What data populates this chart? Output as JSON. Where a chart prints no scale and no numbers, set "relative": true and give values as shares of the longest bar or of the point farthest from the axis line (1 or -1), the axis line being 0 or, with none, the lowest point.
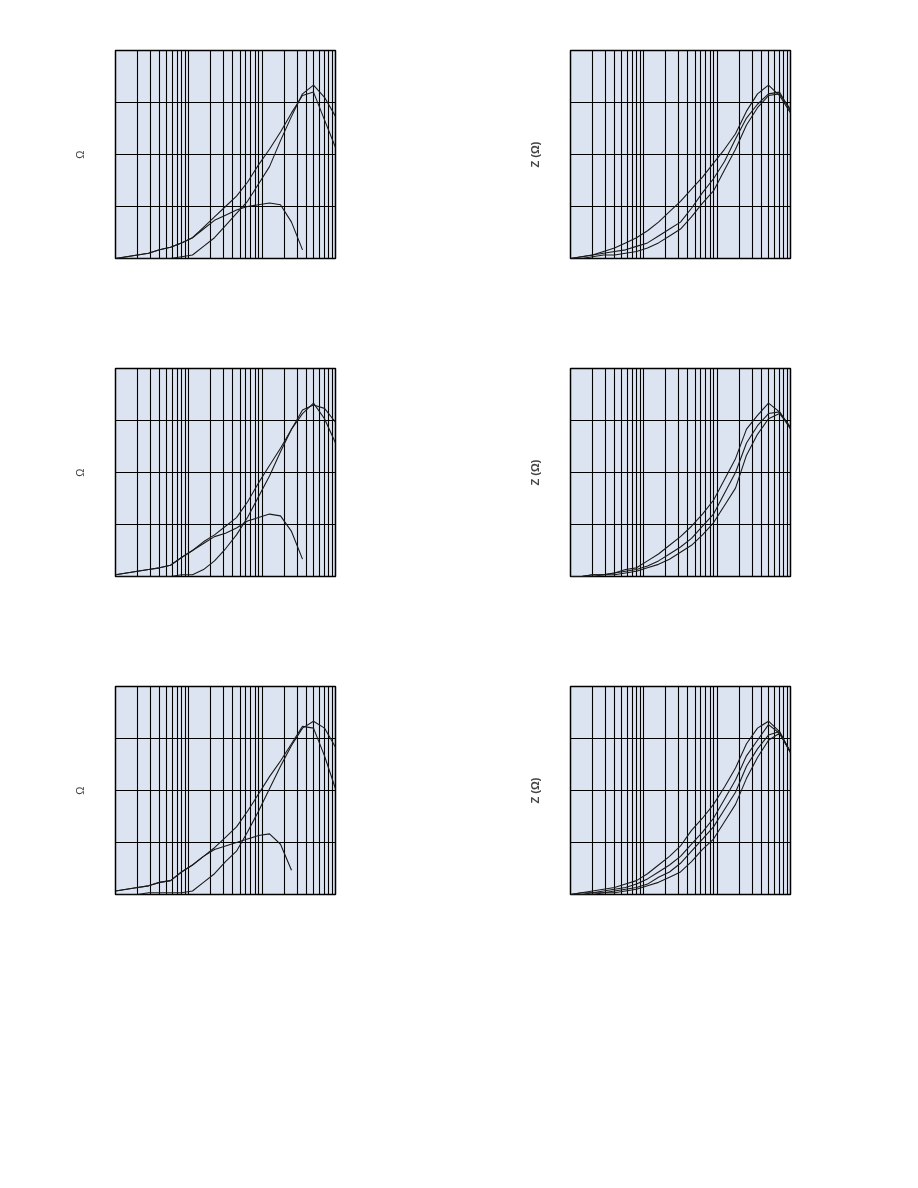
{
  "chart_data": [
    {
      "type": "line",
      "relative": true,
      "ylabel": "Ω",
      "grid": true,
      "categories": [
        null,
        null,
        null,
        null,
        null,
        null,
        null,
        null,
        null,
        null,
        null,
        null,
        null,
        null,
        null,
        null,
        null,
        null,
        null,
        null,
        null
      ],
      "series": [
        {
          "color": "#1a1a1a",
          "values": [
            0,
            0.01,
            0.02,
            0.03,
            0.05,
            0.065,
            0.09,
            0.12,
            0.18,
            0.24,
            0.3,
            0.36,
            0.44,
            0.54,
            0.63,
            0.73,
            0.84,
            0.94,
            0.96,
            0.8,
            0.64
          ]
        },
        {
          "color": "#1a1a1a",
          "values": [
            0,
            0,
            0,
            0,
            0,
            0,
            0.01,
            0.02,
            0.07,
            0.12,
            0.19,
            0.26,
            0.33,
            0.43,
            0.53,
            0.68,
            0.82,
            0.95,
            1.0,
            0.93,
            0.82
          ]
        },
        {
          "color": "#1a1a1a",
          "values": [
            0,
            0.01,
            0.02,
            0.03,
            0.05,
            0.065,
            0.09,
            0.12,
            0.17,
            0.22,
            0.25,
            0.28,
            0.3,
            0.31,
            0.32,
            0.31,
            0.21,
            0.05,
            null,
            null,
            null
          ]
        }
      ]
    },
    {
      "type": "line",
      "relative": true,
      "ylabel": "Z (Ω)",
      "grid": true,
      "categories": [
        null,
        null,
        null,
        null,
        null,
        null,
        null,
        null,
        null,
        null,
        null,
        null,
        null,
        null,
        null,
        null,
        null,
        null,
        null,
        null,
        null
      ],
      "series": [
        {
          "color": "#1a1a1a",
          "values": [
            0,
            0.01,
            0.02,
            0.04,
            0.06,
            0.09,
            0.12,
            0.16,
            0.21,
            0.27,
            0.33,
            0.4,
            0.47,
            0.55,
            0.63,
            0.72,
            0.85,
            0.95,
            1.0,
            0.94,
            0.84
          ]
        },
        {
          "color": "#1a1a1a",
          "values": [
            0,
            0.01,
            0.02,
            0.03,
            0.04,
            0.05,
            0.07,
            0.09,
            0.13,
            0.17,
            0.21,
            0.29,
            0.38,
            0.46,
            0.56,
            0.69,
            0.81,
            0.89,
            0.95,
            0.96,
            0.85
          ]
        },
        {
          "color": "#1a1a1a",
          "values": [
            0,
            0,
            0.01,
            0.02,
            0.02,
            0.03,
            0.04,
            0.06,
            0.09,
            0.13,
            0.17,
            0.24,
            0.32,
            0.39,
            0.51,
            0.63,
            0.77,
            0.87,
            0.94,
            0.95,
            0.86
          ]
        }
      ]
    },
    {
      "type": "line",
      "relative": true,
      "ylabel": "Ω",
      "grid": true,
      "categories": [
        null,
        null,
        null,
        null,
        null,
        null,
        null,
        null,
        null,
        null,
        null,
        null,
        null,
        null,
        null,
        null,
        null,
        null,
        null,
        null,
        null
      ],
      "series": [
        {
          "color": "#1a1a1a",
          "values": [
            0.01,
            0.02,
            0.03,
            0.04,
            0.05,
            0.065,
            0.11,
            0.15,
            0.2,
            0.24,
            0.29,
            0.34,
            0.43,
            0.54,
            0.64,
            0.74,
            0.85,
            0.94,
            1.0,
            0.91,
            0.77
          ]
        },
        {
          "color": "#1a1a1a",
          "values": [
            0,
            0,
            0,
            0,
            0,
            0,
            0.01,
            0.01,
            0.04,
            0.09,
            0.16,
            0.24,
            0.34,
            0.46,
            0.58,
            0.72,
            0.85,
            0.96,
            0.99,
            0.97,
            0.89
          ]
        },
        {
          "color": "#1a1a1a",
          "values": [
            0.01,
            0.02,
            0.03,
            0.04,
            0.05,
            0.065,
            0.11,
            0.15,
            0.19,
            0.23,
            0.25,
            0.28,
            0.32,
            0.34,
            0.36,
            0.35,
            0.26,
            0.1,
            null,
            null,
            null
          ]
        }
      ]
    },
    {
      "type": "line",
      "relative": true,
      "ylabel": "Z (Ω)",
      "grid": true,
      "categories": [
        null,
        null,
        null,
        null,
        null,
        null,
        null,
        null,
        null,
        null,
        null,
        null,
        null,
        null,
        null,
        null,
        null,
        null,
        null,
        null,
        null
      ],
      "series": [
        {
          "color": "#1a1a1a",
          "values": [
            0,
            0,
            0.01,
            0.01,
            0.02,
            0.04,
            0.05,
            0.09,
            0.13,
            0.18,
            0.23,
            0.29,
            0.36,
            0.44,
            0.56,
            0.68,
            0.85,
            0.93,
            1.0,
            0.95,
            0.85
          ]
        },
        {
          "color": "#1a1a1a",
          "values": [
            0,
            0,
            0.01,
            0.01,
            0.02,
            0.03,
            0.04,
            0.06,
            0.09,
            0.13,
            0.17,
            0.22,
            0.29,
            0.36,
            0.48,
            0.6,
            0.77,
            0.87,
            0.94,
            0.95,
            0.86
          ]
        },
        {
          "color": "#1a1a1a",
          "values": [
            0,
            0,
            0,
            0.01,
            0.01,
            0.02,
            0.03,
            0.05,
            0.07,
            0.1,
            0.14,
            0.18,
            0.24,
            0.31,
            0.41,
            0.51,
            0.7,
            0.82,
            0.91,
            0.94,
            0.86
          ]
        }
      ]
    },
    {
      "type": "line",
      "relative": true,
      "ylabel": "Ω",
      "grid": true,
      "categories": [
        null,
        null,
        null,
        null,
        null,
        null,
        null,
        null,
        null,
        null,
        null,
        null,
        null,
        null,
        null,
        null,
        null,
        null,
        null,
        null,
        null
      ],
      "series": [
        {
          "color": "#1a1a1a",
          "values": [
            0.02,
            0.03,
            0.04,
            0.05,
            0.07,
            0.08,
            0.13,
            0.17,
            0.22,
            0.27,
            0.33,
            0.39,
            0.48,
            0.58,
            0.68,
            0.77,
            0.87,
            0.97,
            0.96,
            0.8,
            0.61
          ]
        },
        {
          "color": "#1a1a1a",
          "values": [
            0,
            0,
            0,
            0.01,
            0.01,
            0.01,
            0.01,
            0.02,
            0.07,
            0.12,
            0.19,
            0.25,
            0.36,
            0.48,
            0.61,
            0.74,
            0.86,
            0.96,
            1.0,
            0.96,
            0.85
          ]
        },
        {
          "color": "#1a1a1a",
          "values": [
            0.02,
            0.03,
            0.04,
            0.05,
            0.07,
            0.08,
            0.13,
            0.17,
            0.22,
            0.26,
            0.28,
            0.3,
            0.32,
            0.34,
            0.35,
            0.29,
            0.14,
            null,
            null,
            null,
            null
          ]
        }
      ]
    },
    {
      "type": "line",
      "relative": true,
      "ylabel": "Z (Ω)",
      "grid": true,
      "categories": [
        null,
        null,
        null,
        null,
        null,
        null,
        null,
        null,
        null,
        null,
        null,
        null,
        null,
        null,
        null,
        null,
        null,
        null,
        null,
        null,
        null
      ],
      "series": [
        {
          "color": "#1a1a1a",
          "values": [
            0,
            0.01,
            0.02,
            0.03,
            0.04,
            0.06,
            0.08,
            0.12,
            0.17,
            0.22,
            0.28,
            0.37,
            0.44,
            0.52,
            0.62,
            0.73,
            0.87,
            0.96,
            1.0,
            0.94,
            0.82
          ]
        },
        {
          "color": "#1a1a1a",
          "values": [
            0,
            0.01,
            0.01,
            0.02,
            0.03,
            0.04,
            0.06,
            0.09,
            0.13,
            0.17,
            0.22,
            0.29,
            0.36,
            0.44,
            0.55,
            0.66,
            0.8,
            0.89,
            0.98,
            0.93,
            0.82
          ]
        },
        {
          "color": "#1a1a1a",
          "values": [
            0,
            0,
            0.01,
            0.01,
            0.02,
            0.03,
            0.04,
            0.06,
            0.1,
            0.13,
            0.18,
            0.25,
            0.32,
            0.39,
            0.49,
            0.59,
            0.74,
            0.84,
            0.92,
            0.94,
            0.82
          ]
        },
        {
          "color": "#1a1a1a",
          "values": [
            0,
            0,
            0,
            0.01,
            0.01,
            0.02,
            0.03,
            0.05,
            0.07,
            0.1,
            0.13,
            0.19,
            0.26,
            0.32,
            0.42,
            0.52,
            0.67,
            0.79,
            0.89,
            0.93,
            0.82
          ]
        }
      ]
    }
  ]
}
